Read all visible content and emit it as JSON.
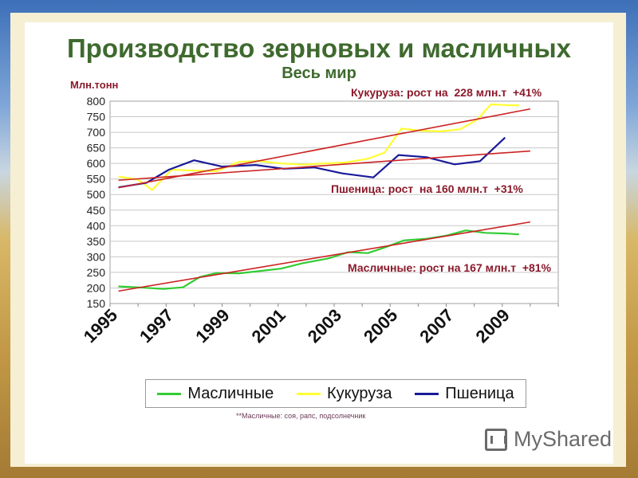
{
  "title": "Производство зерновых и масличных",
  "subtitle": "Весь мир",
  "ylabel": "Млн.тонн",
  "annotations": {
    "corn": "Кукуруза: рост на  228 млн.т  +41%",
    "wheat": "Пшеница: рост  на 160 млн.т  +31%",
    "oilseeds": "Масличные: рост на 167 млн.т  +81%"
  },
  "footnote": "**Масличные: соя, рапс, подсолнечник",
  "brand": "MyShared",
  "brand_icon": "presentation-board-icon",
  "chart_data": {
    "type": "line",
    "title": "Производство зерновых и масличных",
    "subtitle": "Весь мир",
    "ylabel": "Млн.тонн",
    "xlabel": "",
    "ylim": [
      150,
      800
    ],
    "yticks": [
      150,
      200,
      250,
      300,
      350,
      400,
      450,
      500,
      550,
      600,
      650,
      700,
      750,
      800
    ],
    "x": [
      1995,
      1996,
      1997,
      1998,
      1999,
      2000,
      2001,
      2002,
      2003,
      2004,
      2005,
      2006,
      2007,
      2008,
      2009,
      2010
    ],
    "xtick_labels": [
      "1995",
      "1997",
      "1999",
      "2001",
      "2003",
      "2005",
      "2007",
      "2009"
    ],
    "grid": "horizontal",
    "legend_position": "bottom",
    "series": [
      {
        "name": "Масличные",
        "color": "#33cc33",
        "x": [
          1995.3,
          1996.0,
          1996.9,
          1997.6,
          1998.2,
          1998.8,
          1999.6,
          2000.3,
          2001.1,
          2001.9,
          2002.8,
          2003.5,
          2004.2,
          2004.8,
          2005.5,
          2006.3,
          2007.0,
          2007.7,
          2008.4,
          2009.1,
          2009.6
        ],
        "values": [
          205,
          202,
          197,
          202,
          235,
          248,
          247,
          254,
          262,
          280,
          295,
          315,
          312,
          330,
          353,
          358,
          368,
          385,
          377,
          375,
          372
        ]
      },
      {
        "name": "Кукуруза",
        "color": "#ffff33",
        "x": [
          1995.3,
          1996.0,
          1996.5,
          1997.2,
          1998.0,
          1998.8,
          1999.6,
          2000.3,
          2001.1,
          2001.9,
          2002.6,
          2003.4,
          2004.2,
          2004.8,
          2005.4,
          2006.1,
          2006.8,
          2007.5,
          2008.1,
          2008.6,
          2009.2,
          2009.6
        ],
        "values": [
          558,
          548,
          515,
          580,
          577,
          575,
          605,
          608,
          600,
          596,
          600,
          603,
          615,
          635,
          712,
          705,
          703,
          710,
          740,
          790,
          787,
          787
        ]
      },
      {
        "name": "Пшеница",
        "color": "#1a1a99",
        "x": [
          1995.3,
          1996.3,
          1997.1,
          1998.0,
          1999.0,
          2000.2,
          2001.2,
          2002.3,
          2003.3,
          2004.4,
          2005.3,
          2006.3,
          2007.3,
          2008.2,
          2009.1
        ],
        "values": [
          523,
          538,
          580,
          610,
          590,
          595,
          583,
          587,
          568,
          555,
          627,
          620,
          597,
          607,
          683
        ]
      }
    ],
    "trendlines": [
      {
        "series": "Кукуруза",
        "color": "#cc2222",
        "from": [
          1995.3,
          522
        ],
        "to": [
          2010.0,
          775
        ]
      },
      {
        "series": "Пшеница",
        "color": "#cc2222",
        "from": [
          1995.3,
          546
        ],
        "to": [
          2010.0,
          640
        ]
      },
      {
        "series": "Масличные",
        "color": "#cc2222",
        "from": [
          1995.3,
          190
        ],
        "to": [
          2010.0,
          412
        ]
      }
    ]
  }
}
